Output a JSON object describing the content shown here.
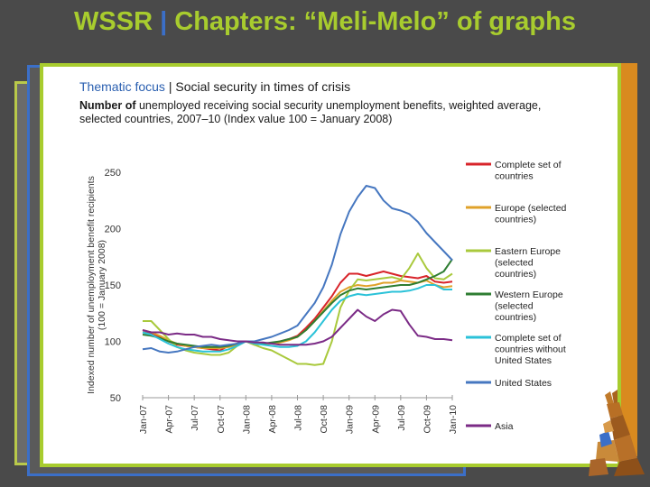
{
  "slide": {
    "title_prefix": "WSSR",
    "title_sep": " | ",
    "title_main": "Chapters: “Meli-Melo” of graphs",
    "focus_label": "Thematic focus",
    "focus_sep": " | ",
    "focus_text": "Social security in times of crisis",
    "caption_bold": "Number of",
    "caption_rest": " unemployed receiving social security unemployment  benefits, weighted average, selected countries, 2007–10 (Index  value 100 = January 2008)"
  },
  "chart_data": {
    "type": "line",
    "ylabel_lines": [
      "Indexed number of unemployment benefit recipients",
      "(100 = January 2008)"
    ],
    "ylim": [
      50,
      250
    ],
    "yticks": [
      50,
      100,
      150,
      200,
      250
    ],
    "x_labels": [
      "Jan-07",
      "Apr-07",
      "Jul-07",
      "Oct-07",
      "Jan-08",
      "Apr-08",
      "Jul-08",
      "Oct-08",
      "Jan-09",
      "Apr-09",
      "Jul-09",
      "Oct-09",
      "Jan-10"
    ],
    "legend_position": "right",
    "series": [
      {
        "name": "Complete set of countries",
        "color": "#d8242a",
        "values": [
          108,
          107,
          104,
          100,
          97,
          96,
          95,
          94,
          93,
          92,
          96,
          98,
          100,
          97,
          98,
          98,
          100,
          102,
          105,
          112,
          120,
          130,
          140,
          152,
          160,
          160,
          158,
          160,
          162,
          160,
          158,
          157,
          156,
          158,
          153,
          152,
          153
        ]
      },
      {
        "name": "Europe (selected countries)",
        "color": "#e0a22a",
        "values": [
          110,
          108,
          105,
          101,
          98,
          96,
          95,
          94,
          94,
          94,
          95,
          97,
          100,
          98,
          98,
          98,
          99,
          101,
          104,
          110,
          118,
          127,
          136,
          144,
          148,
          150,
          149,
          150,
          152,
          152,
          154,
          153,
          152,
          154,
          150,
          148,
          149
        ]
      },
      {
        "name": "Eastern Europe (selected countries)",
        "color": "#a9c93c",
        "values": [
          118,
          118,
          110,
          102,
          95,
          92,
          90,
          89,
          88,
          88,
          90,
          96,
          100,
          97,
          94,
          92,
          88,
          84,
          80,
          80,
          79,
          80,
          100,
          130,
          145,
          155,
          154,
          155,
          156,
          157,
          155,
          165,
          178,
          165,
          156,
          155,
          160
        ]
      },
      {
        "name": "Western Europe (selected countries)",
        "color": "#2e7d32",
        "values": [
          106,
          105,
          103,
          100,
          98,
          97,
          96,
          95,
          95,
          95,
          96,
          98,
          100,
          99,
          98,
          99,
          100,
          102,
          104,
          110,
          118,
          126,
          134,
          141,
          145,
          147,
          146,
          147,
          148,
          149,
          150,
          150,
          152,
          155,
          158,
          162,
          173
        ]
      },
      {
        "name": "Complete set of countries without United States",
        "color": "#2bc2d8",
        "values": [
          108,
          106,
          102,
          98,
          95,
          93,
          92,
          91,
          91,
          91,
          93,
          96,
          100,
          98,
          97,
          96,
          95,
          95,
          96,
          100,
          108,
          118,
          128,
          136,
          140,
          142,
          141,
          142,
          143,
          144,
          144,
          145,
          147,
          150,
          150,
          146,
          146
        ]
      },
      {
        "name": "United States",
        "color": "#4677c0",
        "values": [
          93,
          94,
          91,
          90,
          91,
          93,
          95,
          96,
          97,
          96,
          97,
          98,
          100,
          100,
          102,
          104,
          107,
          110,
          114,
          124,
          134,
          148,
          168,
          195,
          215,
          228,
          238,
          236,
          225,
          218,
          216,
          213,
          206,
          196,
          188,
          180,
          172
        ]
      },
      {
        "name": "Asia",
        "color": "#7b2b86",
        "values": [
          110,
          108,
          108,
          106,
          107,
          106,
          106,
          104,
          104,
          102,
          101,
          100,
          100,
          99,
          99,
          98,
          97,
          97,
          97,
          97,
          98,
          100,
          104,
          112,
          120,
          128,
          122,
          118,
          124,
          128,
          127,
          115,
          105,
          104,
          102,
          102,
          101
        ]
      }
    ]
  }
}
